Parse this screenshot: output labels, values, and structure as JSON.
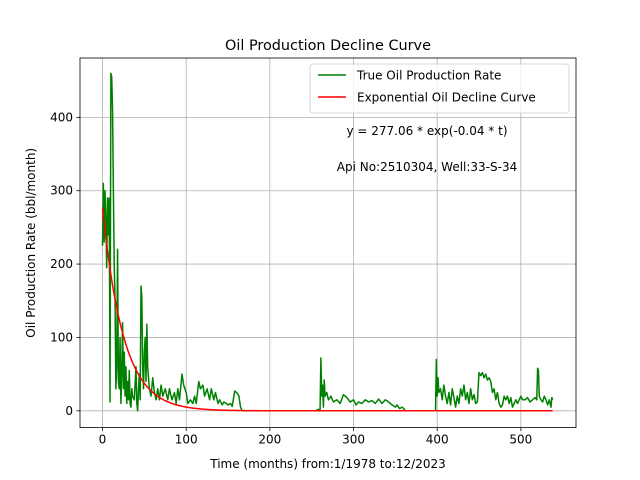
{
  "chart_data": {
    "type": "line",
    "title": "Oil Production Decline Curve",
    "xlabel": "Time (months) from:1/1978 to:12/2023",
    "ylabel": "Oil Production Rate (bbl/month)",
    "xlim": [
      -26.9,
      565.9
    ],
    "ylim": [
      -22.9,
      480.9
    ],
    "xticks": [
      0,
      100,
      200,
      300,
      400,
      500
    ],
    "yticks": [
      0,
      100,
      200,
      300,
      400
    ],
    "grid": true,
    "legend_position": "top-right",
    "annotations": [
      "y = 277.06 * exp(-0.04 * t)",
      "Api No:2510304, Well:33-S-34"
    ],
    "colors": {
      "true_rate": "#008000",
      "decline_curve": "#ff0000"
    },
    "series": [
      {
        "name": "True Oil Production Rate",
        "color": "#008000",
        "points": [
          [
            0,
            225
          ],
          [
            1,
            310
          ],
          [
            2,
            230
          ],
          [
            3,
            300
          ],
          [
            4,
            260
          ],
          [
            5,
            195
          ],
          [
            6,
            290
          ],
          [
            7,
            240
          ],
          [
            8,
            290
          ],
          [
            9,
            12
          ],
          [
            10,
            460
          ],
          [
            11,
            455
          ],
          [
            12,
            410
          ],
          [
            13,
            300
          ],
          [
            14,
            200
          ],
          [
            15,
            150
          ],
          [
            16,
            30
          ],
          [
            17,
            60
          ],
          [
            18,
            220
          ],
          [
            19,
            40
          ],
          [
            20,
            30
          ],
          [
            21,
            100
          ],
          [
            22,
            10
          ],
          [
            23,
            50
          ],
          [
            24,
            120
          ],
          [
            25,
            30
          ],
          [
            26,
            80
          ],
          [
            27,
            20
          ],
          [
            28,
            60
          ],
          [
            29,
            10
          ],
          [
            30,
            40
          ],
          [
            31,
            15
          ],
          [
            32,
            55
          ],
          [
            33,
            10
          ],
          [
            34,
            5
          ],
          [
            35,
            30
          ],
          [
            36,
            20
          ],
          [
            38,
            15
          ],
          [
            40,
            60
          ],
          [
            41,
            10
          ],
          [
            42,
            0
          ],
          [
            43,
            30
          ],
          [
            44,
            50
          ],
          [
            45,
            15
          ],
          [
            46,
            170
          ],
          [
            47,
            155
          ],
          [
            48,
            60
          ],
          [
            49,
            30
          ],
          [
            50,
            80
          ],
          [
            51,
            100
          ],
          [
            52,
            40
          ],
          [
            53,
            118
          ],
          [
            54,
            60
          ],
          [
            55,
            45
          ],
          [
            56,
            30
          ],
          [
            58,
            20
          ],
          [
            60,
            45
          ],
          [
            62,
            25
          ],
          [
            64,
            15
          ],
          [
            66,
            30
          ],
          [
            68,
            15
          ],
          [
            70,
            35
          ],
          [
            72,
            20
          ],
          [
            75,
            30
          ],
          [
            78,
            15
          ],
          [
            80,
            30
          ],
          [
            83,
            15
          ],
          [
            86,
            25
          ],
          [
            88,
            10
          ],
          [
            90,
            30
          ],
          [
            92,
            15
          ],
          [
            95,
            50
          ],
          [
            97,
            35
          ],
          [
            100,
            25
          ],
          [
            102,
            10
          ],
          [
            105,
            15
          ],
          [
            108,
            10
          ],
          [
            110,
            20
          ],
          [
            112,
            10
          ],
          [
            115,
            40
          ],
          [
            117,
            30
          ],
          [
            120,
            35
          ],
          [
            122,
            20
          ],
          [
            125,
            30
          ],
          [
            128,
            15
          ],
          [
            130,
            30
          ],
          [
            133,
            15
          ],
          [
            135,
            25
          ],
          [
            138,
            10
          ],
          [
            140,
            15
          ],
          [
            143,
            8
          ],
          [
            145,
            12
          ],
          [
            148,
            10
          ],
          [
            150,
            8
          ],
          [
            153,
            10
          ],
          [
            155,
            6
          ],
          [
            158,
            27
          ],
          [
            161,
            24
          ],
          [
            163,
            20
          ],
          [
            165,
            5
          ],
          [
            167,
            0
          ],
          [
            170,
            0
          ],
          [
            200,
            0
          ],
          [
            230,
            0
          ],
          [
            255,
            0
          ],
          [
            258,
            2
          ],
          [
            260,
            0
          ],
          [
            261,
            72
          ],
          [
            262,
            20
          ],
          [
            263,
            35
          ],
          [
            264,
            5
          ],
          [
            265,
            42
          ],
          [
            266,
            20
          ],
          [
            268,
            25
          ],
          [
            270,
            15
          ],
          [
            273,
            20
          ],
          [
            276,
            12
          ],
          [
            280,
            15
          ],
          [
            284,
            10
          ],
          [
            288,
            22
          ],
          [
            292,
            18
          ],
          [
            296,
            12
          ],
          [
            300,
            15
          ],
          [
            303,
            8
          ],
          [
            306,
            12
          ],
          [
            310,
            10
          ],
          [
            314,
            15
          ],
          [
            318,
            12
          ],
          [
            322,
            14
          ],
          [
            326,
            10
          ],
          [
            330,
            16
          ],
          [
            334,
            10
          ],
          [
            338,
            15
          ],
          [
            342,
            12
          ],
          [
            346,
            8
          ],
          [
            350,
            5
          ],
          [
            352,
            8
          ],
          [
            355,
            3
          ],
          [
            358,
            5
          ],
          [
            360,
            3
          ],
          [
            362,
            0
          ],
          [
            380,
            0
          ],
          [
            398,
            0
          ],
          [
            399,
            70
          ],
          [
            400,
            20
          ],
          [
            401,
            45
          ],
          [
            402,
            25
          ],
          [
            404,
            30
          ],
          [
            406,
            15
          ],
          [
            408,
            35
          ],
          [
            410,
            20
          ],
          [
            412,
            10
          ],
          [
            414,
            25
          ],
          [
            416,
            8
          ],
          [
            418,
            30
          ],
          [
            420,
            18
          ],
          [
            422,
            5
          ],
          [
            424,
            20
          ],
          [
            426,
            10
          ],
          [
            428,
            30
          ],
          [
            430,
            20
          ],
          [
            432,
            35
          ],
          [
            434,
            15
          ],
          [
            436,
            25
          ],
          [
            438,
            10
          ],
          [
            440,
            30
          ],
          [
            442,
            15
          ],
          [
            444,
            22
          ],
          [
            446,
            10
          ],
          [
            448,
            12
          ],
          [
            450,
            52
          ],
          [
            452,
            48
          ],
          [
            454,
            52
          ],
          [
            456,
            45
          ],
          [
            458,
            50
          ],
          [
            460,
            42
          ],
          [
            462,
            45
          ],
          [
            464,
            40
          ],
          [
            466,
            25
          ],
          [
            468,
            30
          ],
          [
            470,
            15
          ],
          [
            472,
            25
          ],
          [
            474,
            10
          ],
          [
            476,
            5
          ],
          [
            478,
            8
          ],
          [
            480,
            20
          ],
          [
            482,
            15
          ],
          [
            484,
            20
          ],
          [
            486,
            10
          ],
          [
            488,
            18
          ],
          [
            490,
            5
          ],
          [
            492,
            10
          ],
          [
            494,
            15
          ],
          [
            496,
            10
          ],
          [
            498,
            15
          ],
          [
            500,
            20
          ],
          [
            502,
            15
          ],
          [
            505,
            15
          ],
          [
            508,
            18
          ],
          [
            511,
            12
          ],
          [
            514,
            15
          ],
          [
            517,
            18
          ],
          [
            519,
            15
          ],
          [
            520,
            58
          ],
          [
            521,
            55
          ],
          [
            522,
            20
          ],
          [
            524,
            15
          ],
          [
            526,
            12
          ],
          [
            528,
            20
          ],
          [
            530,
            15
          ],
          [
            532,
            8
          ],
          [
            534,
            15
          ],
          [
            536,
            5
          ],
          [
            537,
            18
          ],
          [
            538,
            15
          ]
        ]
      },
      {
        "name": "Exponential Oil Decline Curve",
        "color": "#ff0000",
        "model": {
          "a": 277.06,
          "b": -0.04
        },
        "x_range": [
          0,
          538
        ]
      }
    ]
  }
}
